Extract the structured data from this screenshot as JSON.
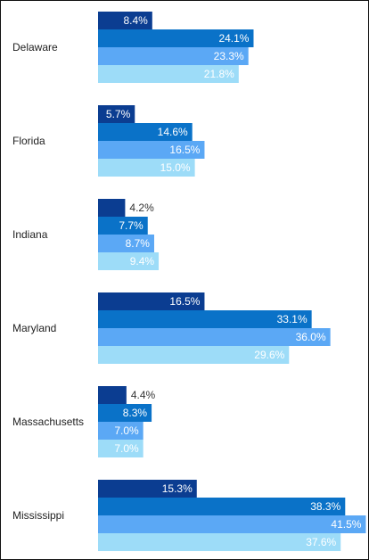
{
  "chart_data": {
    "type": "bar",
    "orientation": "horizontal",
    "title": "",
    "xlabel": "",
    "ylabel": "",
    "value_suffix": "%",
    "xlim": [
      0,
      42
    ],
    "grid": false,
    "legend": "none",
    "categories": [
      "Delaware",
      "Florida",
      "Indiana",
      "Maryland",
      "Massachusetts",
      "Mississippi"
    ],
    "series": [
      {
        "color": "#0b3d91",
        "values": [
          8.4,
          5.7,
          4.2,
          16.5,
          4.4,
          15.3
        ]
      },
      {
        "color": "#0a72c8",
        "values": [
          24.1,
          14.6,
          7.7,
          33.1,
          8.3,
          38.3
        ]
      },
      {
        "color": "#5ba8f5",
        "values": [
          23.3,
          16.5,
          8.7,
          36.0,
          7.0,
          41.5
        ]
      },
      {
        "color": "#9ddcf8",
        "values": [
          21.8,
          15.0,
          9.4,
          29.6,
          7.0,
          37.6
        ]
      }
    ],
    "labels": [
      [
        "8.4%",
        "5.7%",
        "4.2%",
        "16.5%",
        "4.4%",
        "15.3%"
      ],
      [
        "24.1%",
        "14.6%",
        "7.7%",
        "33.1%",
        "8.3%",
        "38.3%"
      ],
      [
        "23.3%",
        "16.5%",
        "8.7%",
        "36.0%",
        "7.0%",
        "41.5%"
      ],
      [
        "21.8%",
        "15.0%",
        "9.4%",
        "29.6%",
        "7.0%",
        "37.6%"
      ]
    ]
  }
}
